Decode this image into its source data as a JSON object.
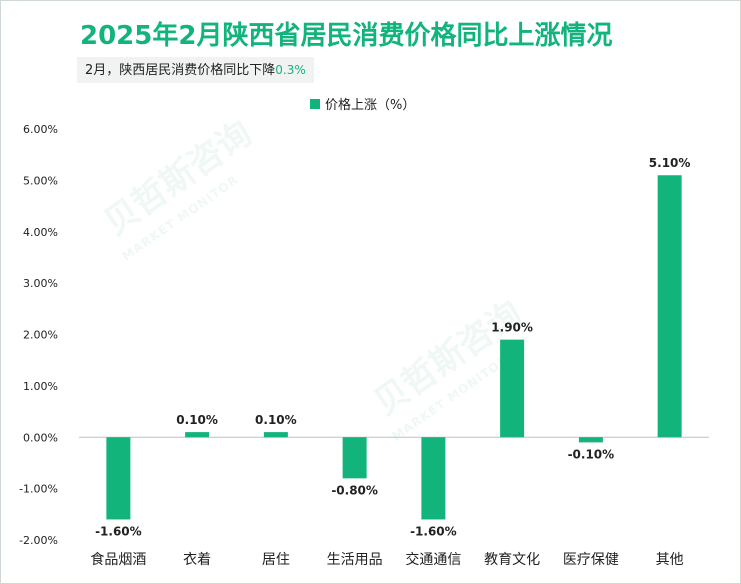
{
  "title": "2025年2月陕西省居民消费价格同比上涨情况",
  "subtitle": {
    "text": "2月，陕西居民消费价格同比下降",
    "highlight": "0.3%"
  },
  "watermark": {
    "cn": "贝哲斯咨询",
    "en": "MARKET MONITOR"
  },
  "colors": {
    "bar": "#12b47c",
    "title": "#12b47c",
    "axis": "#bfbfbf"
  },
  "chart_data": {
    "type": "bar",
    "legend": {
      "label": "价格上涨（%）",
      "position": "top"
    },
    "categories": [
      "食品烟酒",
      "衣着",
      "居住",
      "生活用品",
      "交通通信",
      "教育文化",
      "医疗保健",
      "其他"
    ],
    "values": [
      -1.6,
      0.1,
      0.1,
      -0.8,
      -1.6,
      1.9,
      -0.1,
      5.1
    ],
    "data_labels": [
      "-1.60%",
      "0.10%",
      "0.10%",
      "-0.80%",
      "-1.60%",
      "1.90%",
      "-0.10%",
      "5.10%"
    ],
    "ylim": [
      -2,
      6
    ],
    "yticks": [
      -2,
      -1,
      0,
      1,
      2,
      3,
      4,
      5,
      6
    ],
    "ytick_labels": [
      "-2.00%",
      "-1.00%",
      "0.00%",
      "1.00%",
      "2.00%",
      "3.00%",
      "4.00%",
      "5.00%",
      "6.00%"
    ],
    "grid": false
  }
}
